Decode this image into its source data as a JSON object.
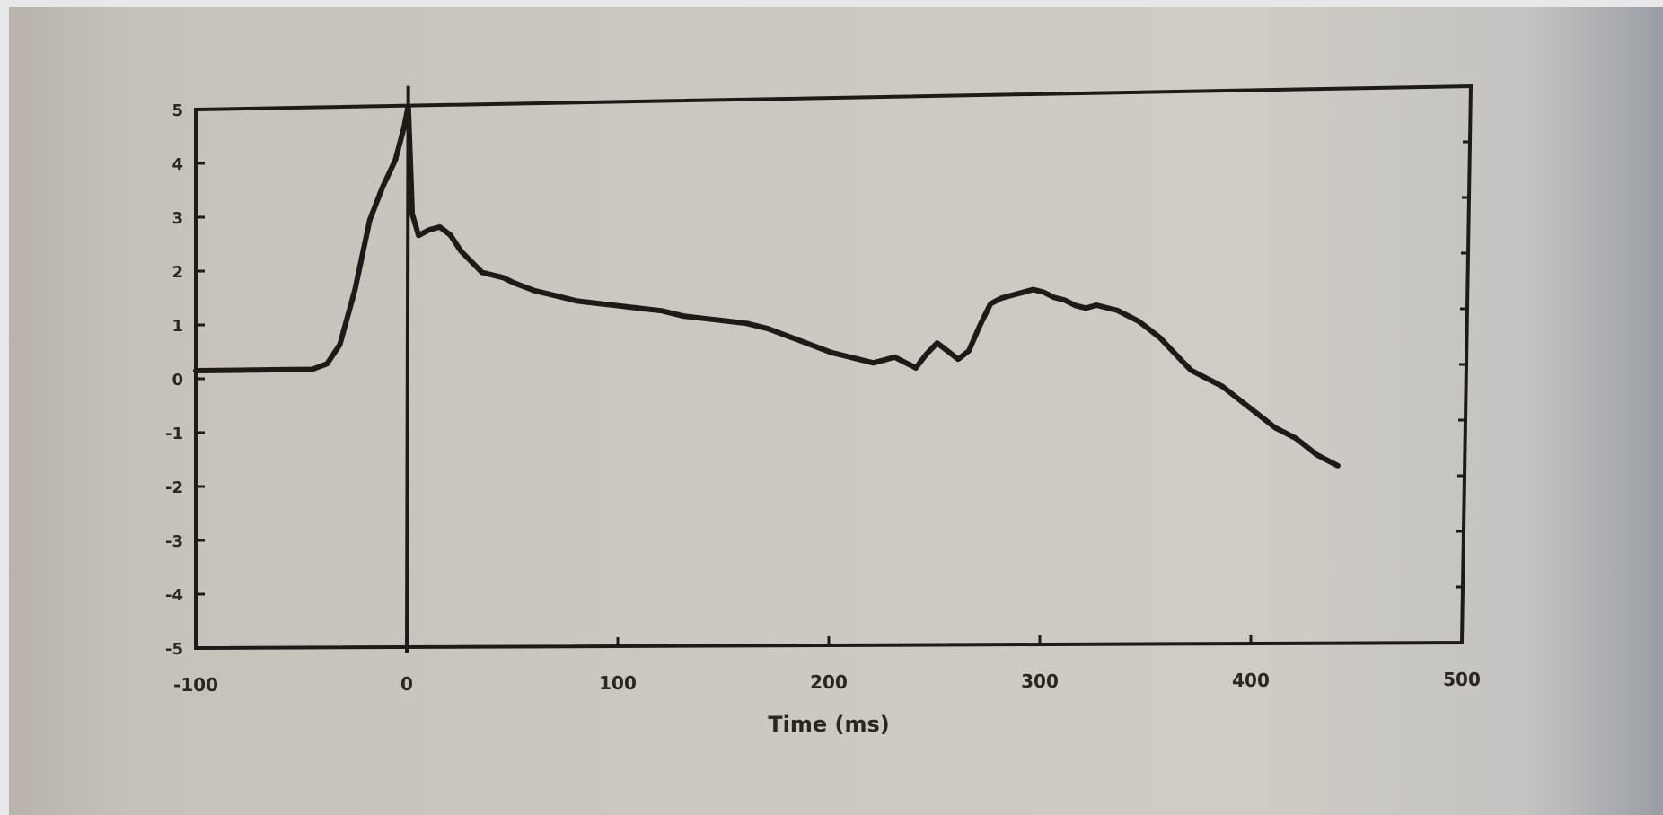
{
  "chart_data": {
    "type": "line",
    "title": "",
    "xlabel": "Time (ms)",
    "ylabel": "",
    "event_marker_label": "",
    "xlim": [
      -100,
      500
    ],
    "ylim": [
      -5,
      5
    ],
    "x_ticks": [
      "-100",
      "0",
      "100",
      "200",
      "300",
      "400",
      "500"
    ],
    "y_ticks": [
      "5",
      "4",
      "3",
      "2",
      "1",
      "0",
      "-1",
      "-2",
      "-3",
      "-4",
      "-5"
    ],
    "grid": false,
    "legend": "none",
    "event_marker_x": 0,
    "line_color": "#1e1a17",
    "series": [
      {
        "x": [
          -100,
          -80,
          -60,
          -45,
          -38,
          -32,
          -25,
          -18,
          -12,
          -6,
          -2,
          0,
          2,
          5,
          10,
          15,
          20,
          25,
          30,
          35,
          40,
          45,
          50,
          60,
          70,
          80,
          90,
          100,
          110,
          120,
          130,
          140,
          150,
          160,
          170,
          180,
          190,
          200,
          210,
          220,
          230,
          240,
          245,
          250,
          255,
          260,
          265,
          270,
          275,
          280,
          285,
          290,
          295,
          300,
          305,
          310,
          315,
          320,
          325,
          330,
          335,
          340,
          345,
          350,
          355,
          360,
          365,
          370,
          375,
          380,
          385,
          390,
          395,
          400,
          405,
          410,
          415,
          420,
          425,
          430,
          435,
          440
        ],
        "y": [
          0.15,
          0.15,
          0.15,
          0.15,
          0.25,
          0.6,
          1.6,
          2.9,
          3.5,
          4.0,
          4.6,
          5.0,
          3.0,
          2.6,
          2.7,
          2.75,
          2.6,
          2.3,
          2.1,
          1.9,
          1.85,
          1.8,
          1.7,
          1.55,
          1.45,
          1.35,
          1.3,
          1.25,
          1.2,
          1.15,
          1.05,
          1.0,
          0.95,
          0.9,
          0.8,
          0.65,
          0.5,
          0.35,
          0.25,
          0.15,
          0.25,
          0.05,
          0.3,
          0.5,
          0.35,
          0.2,
          0.35,
          0.8,
          1.2,
          1.3,
          1.35,
          1.4,
          1.45,
          1.4,
          1.3,
          1.25,
          1.15,
          1.1,
          1.15,
          1.1,
          1.05,
          0.95,
          0.85,
          0.7,
          0.55,
          0.35,
          0.15,
          -0.05,
          -0.15,
          -0.25,
          -0.35,
          -0.5,
          -0.65,
          -0.8,
          -0.95,
          -1.1,
          -1.2,
          -1.3,
          -1.45,
          -1.6,
          -1.7,
          -1.8
        ]
      }
    ]
  }
}
